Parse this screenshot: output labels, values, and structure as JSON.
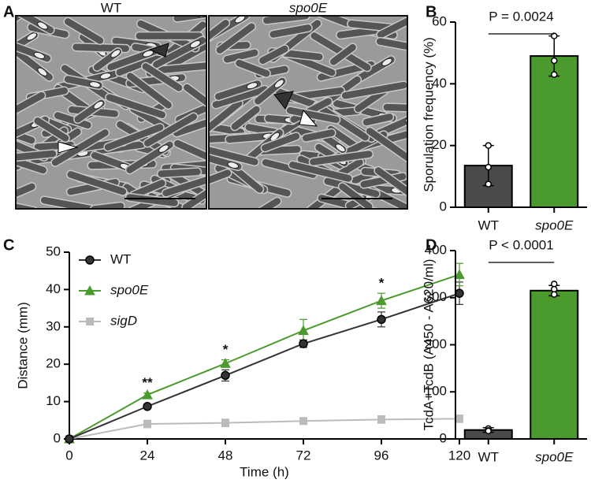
{
  "images": {
    "label": "A",
    "titles": [
      "WT",
      "spo0E"
    ],
    "italic": [
      false,
      true
    ]
  },
  "chart_data": [
    {
      "type": "bar",
      "label": "B",
      "ylabel": "Sporulation frequency (%)",
      "categories": [
        "WT",
        "spo0E"
      ],
      "italic_categories": [
        false,
        true
      ],
      "values": [
        13.5,
        49
      ],
      "errors": [
        6.5,
        6.5
      ],
      "points": [
        [
          20,
          13,
          7.5
        ],
        [
          55.5,
          47.5,
          43
        ]
      ],
      "colors": [
        "#4a4a4a",
        "#4b9a2d"
      ],
      "ylim": [
        0,
        60
      ],
      "yticks": [
        0,
        20,
        40,
        60
      ],
      "annotation": "P = 0.0024"
    },
    {
      "type": "line",
      "label": "C",
      "xlabel": "Time (h)",
      "ylabel": "Distance (mm)",
      "x": [
        0,
        24,
        48,
        72,
        96,
        120
      ],
      "series": [
        {
          "name": "WT",
          "color": "#333333",
          "marker": "circle",
          "italic": false,
          "values": [
            0,
            8.7,
            17,
            25.5,
            32,
            39
          ],
          "errors": [
            0,
            0.5,
            1.5,
            1,
            2,
            3
          ]
        },
        {
          "name": "spo0E",
          "color": "#4b9a2d",
          "marker": "triangle",
          "italic": true,
          "values": [
            0,
            11.8,
            20.2,
            29,
            37,
            44
          ],
          "errors": [
            0,
            0.5,
            1,
            3,
            2,
            3
          ]
        },
        {
          "name": "sigD",
          "color": "#bbbbbb",
          "marker": "square",
          "italic": true,
          "values": [
            0,
            4,
            4.3,
            4.8,
            5.2,
            5.4
          ],
          "errors": [
            0,
            1,
            1,
            0.5,
            1,
            1
          ]
        }
      ],
      "annotations": [
        {
          "text": "**",
          "x": 24
        },
        {
          "text": "*",
          "x": 48
        },
        {
          "text": "*",
          "x": 96
        }
      ],
      "xlim": [
        0,
        120
      ],
      "xticks": [
        0,
        24,
        48,
        72,
        96,
        120
      ],
      "ylim": [
        0,
        50
      ],
      "yticks": [
        0,
        10,
        20,
        30,
        40,
        50
      ],
      "legend": "upper left"
    },
    {
      "type": "bar",
      "label": "D",
      "ylabel": "TcdA+TcdB (A450 - A620/ml)",
      "categories": [
        "WT",
        "spo0E"
      ],
      "italic_categories": [
        false,
        true
      ],
      "values": [
        19,
        315
      ],
      "errors": [
        5,
        11
      ],
      "points": [
        [
          22,
          18,
          17
        ],
        [
          329,
          318,
          307
        ]
      ],
      "colors": [
        "#4a4a4a",
        "#4b9a2d"
      ],
      "ylim": [
        0,
        400
      ],
      "yticks": [
        0,
        100,
        200,
        300,
        400
      ],
      "annotation": "P < 0.0001"
    }
  ]
}
